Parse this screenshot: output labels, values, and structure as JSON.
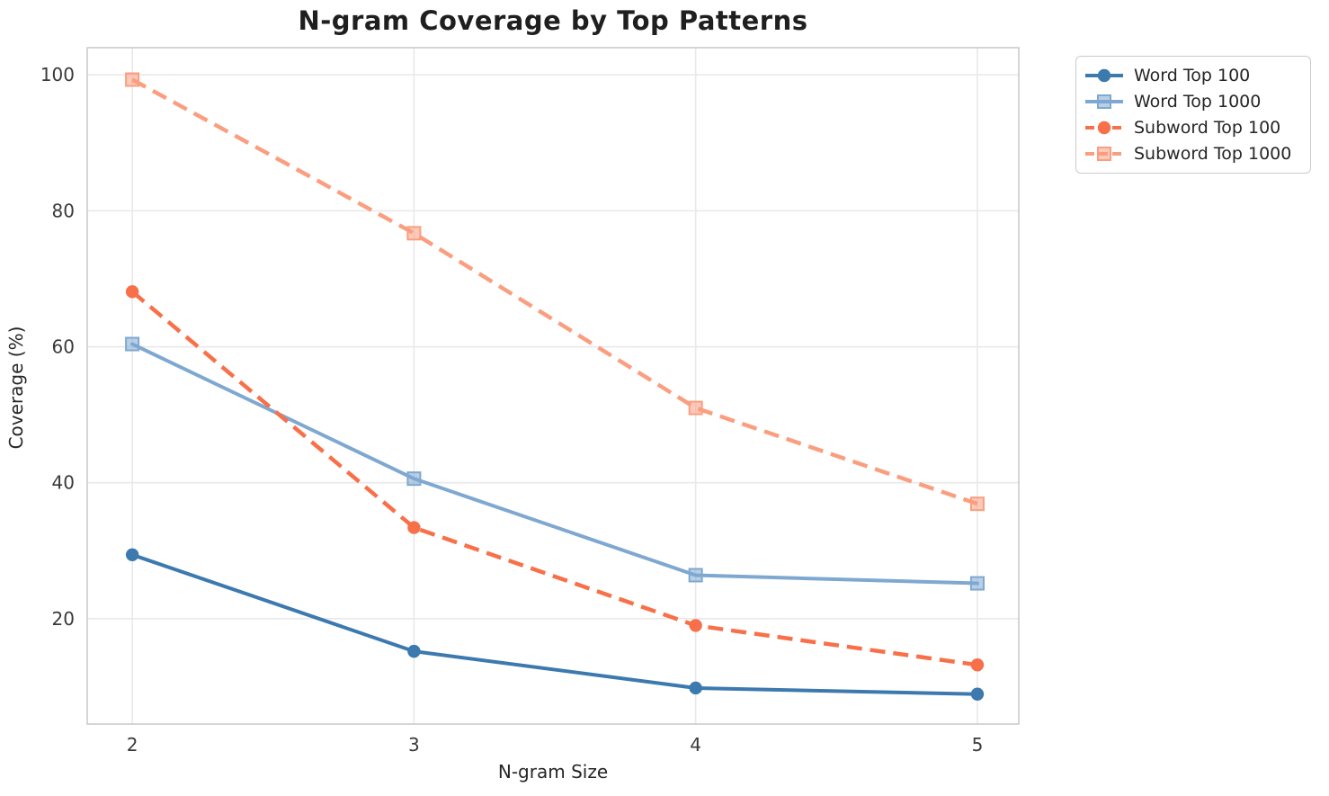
{
  "chart_data": {
    "type": "line",
    "title": "N-gram Coverage by Top Patterns",
    "xlabel": "N-gram Size",
    "ylabel": "Coverage (%)",
    "x": [
      2,
      3,
      4,
      5
    ],
    "xticks": [
      "2",
      "3",
      "4",
      "5"
    ],
    "yticks": [
      20,
      40,
      60,
      80,
      100
    ],
    "xlim": [
      1.84,
      5.147
    ],
    "ylim": [
      4.5,
      104.0
    ],
    "grid": true,
    "legend_position": "outside upper right",
    "colors": {
      "grid": "#e9e9ec",
      "spine": "#cbcbcb",
      "tick_text": "#3a3a3a"
    },
    "series": [
      {
        "name": "Word Top 100",
        "color": "#3c79ae",
        "marker": "circle",
        "dash": "solid",
        "values": [
          29.4,
          15.2,
          9.8,
          8.9
        ]
      },
      {
        "name": "Word Top 1000",
        "color": "#7fa8d1",
        "marker": "square",
        "dash": "solid",
        "values": [
          60.4,
          40.6,
          26.4,
          25.2
        ]
      },
      {
        "name": "Subword Top 100",
        "color": "#f8704a",
        "marker": "circle",
        "dash": "dashed",
        "values": [
          68.1,
          33.4,
          19.0,
          13.2
        ]
      },
      {
        "name": "Subword Top 1000",
        "color": "#fb9e80",
        "marker": "square",
        "dash": "dashed",
        "values": [
          99.3,
          76.7,
          51.0,
          36.9
        ]
      }
    ]
  }
}
